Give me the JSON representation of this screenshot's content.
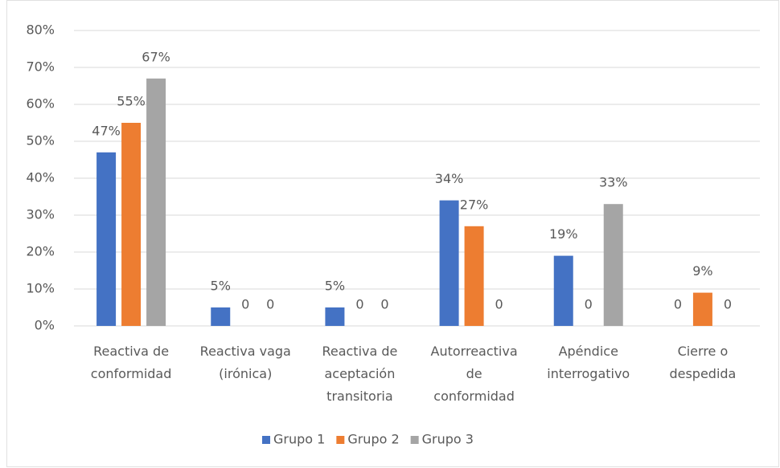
{
  "chart_data": {
    "type": "bar",
    "categories": [
      "Reactiva de conformidad",
      "Reactiva vaga (irónica)",
      "Reactiva de aceptación transitoria",
      "Autorreactiva de conformidad",
      "Apéndice interrogativo",
      "Cierre o despedida"
    ],
    "series": [
      {
        "name": "Grupo 1",
        "color": "#4472c4",
        "values": [
          47,
          5,
          5,
          34,
          19,
          0
        ],
        "value_labels": [
          "47%",
          "5%",
          "5%",
          "34%",
          "19%",
          "0"
        ]
      },
      {
        "name": "Grupo 2",
        "color": "#ed7d31",
        "values": [
          55,
          0,
          0,
          27,
          0,
          9
        ],
        "value_labels": [
          "55%",
          "0",
          "0",
          "27%",
          "0",
          "9%"
        ]
      },
      {
        "name": "Grupo 3",
        "color": "#a5a5a5",
        "values": [
          67,
          0,
          0,
          0,
          33,
          0
        ],
        "value_labels": [
          "67%",
          "0",
          "0",
          "0",
          "33%",
          "0"
        ]
      }
    ],
    "ylim": [
      0,
      80
    ],
    "yticks": [
      {
        "value": 0,
        "label": "0%"
      },
      {
        "value": 10,
        "label": "10%"
      },
      {
        "value": 20,
        "label": "20%"
      },
      {
        "value": 30,
        "label": "30%"
      },
      {
        "value": 40,
        "label": "40%"
      },
      {
        "value": 50,
        "label": "50%"
      },
      {
        "value": 60,
        "label": "60%"
      },
      {
        "value": 70,
        "label": "70%"
      },
      {
        "value": 80,
        "label": "80%"
      }
    ],
    "grid": true,
    "legend": "bottom"
  }
}
